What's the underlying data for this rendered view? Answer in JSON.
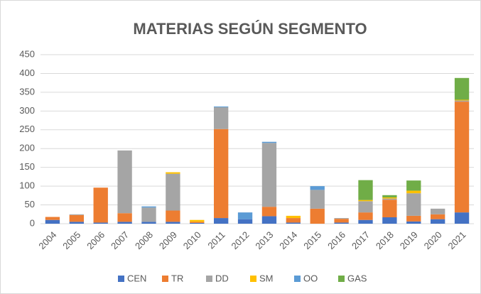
{
  "chart_data": {
    "type": "bar",
    "stacked": true,
    "title": "MATERIAS SEGÚN SEGMENTO",
    "categories": [
      "2004",
      "2005",
      "2006",
      "2007",
      "2008",
      "2009",
      "2010",
      "2011",
      "2012",
      "2013",
      "2014",
      "2015",
      "2016",
      "2017",
      "2018",
      "2019",
      "2020",
      "2021"
    ],
    "series": [
      {
        "name": "CEN",
        "color": "#4472c4",
        "values": [
          10,
          5,
          3,
          5,
          5,
          5,
          2,
          15,
          12,
          20,
          3,
          0,
          3,
          10,
          17,
          6,
          12,
          30
        ]
      },
      {
        "name": "TR",
        "color": "#ed7d31",
        "values": [
          8,
          18,
          93,
          23,
          0,
          30,
          3,
          237,
          0,
          25,
          12,
          40,
          10,
          20,
          47,
          15,
          13,
          295
        ]
      },
      {
        "name": "DD",
        "color": "#a5a5a5",
        "values": [
          0,
          2,
          0,
          167,
          38,
          98,
          0,
          58,
          0,
          170,
          0,
          50,
          2,
          30,
          3,
          60,
          15,
          3
        ]
      },
      {
        "name": "SM",
        "color": "#ffc000",
        "values": [
          0,
          0,
          0,
          0,
          0,
          4,
          5,
          0,
          0,
          0,
          6,
          0,
          0,
          3,
          3,
          7,
          0,
          2
        ]
      },
      {
        "name": "OO",
        "color": "#5b9bd5",
        "values": [
          0,
          0,
          0,
          0,
          3,
          0,
          0,
          2,
          18,
          3,
          0,
          10,
          0,
          0,
          0,
          0,
          0,
          0
        ]
      },
      {
        "name": "GAS",
        "color": "#70ad47",
        "values": [
          0,
          0,
          0,
          0,
          0,
          0,
          0,
          0,
          0,
          0,
          0,
          0,
          0,
          53,
          6,
          27,
          0,
          58
        ]
      }
    ],
    "ylim": [
      0,
      450
    ],
    "yticks": [
      0,
      50,
      100,
      150,
      200,
      250,
      300,
      350,
      400,
      450
    ],
    "grid": true,
    "legend": "bottom"
  }
}
